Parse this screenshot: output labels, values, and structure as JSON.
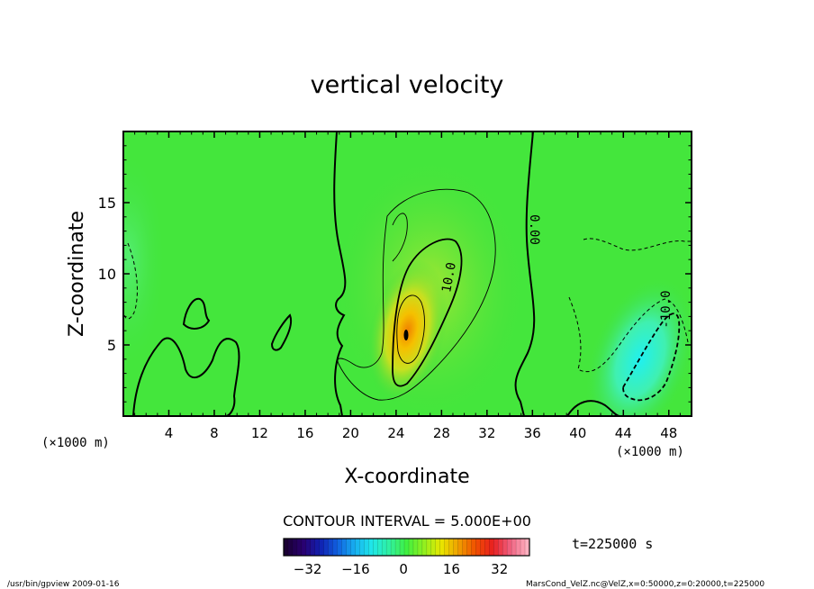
{
  "chart_data": {
    "type": "heatmap",
    "title": "vertical velocity",
    "xlabel": "X-coordinate",
    "ylabel": "Z-coordinate",
    "x_unit_left": "(×1000 m)",
    "x_unit_right": "(×1000 m)",
    "xlim": [
      0,
      50
    ],
    "ylim": [
      0,
      20
    ],
    "x_ticks": [
      4,
      8,
      12,
      16,
      20,
      24,
      28,
      32,
      36,
      40,
      44,
      48
    ],
    "x_tick_labels": [
      "4",
      "8",
      "12",
      "16",
      "20",
      "24",
      "28",
      "32",
      "36",
      "40",
      "44",
      "48"
    ],
    "y_ticks": [
      5,
      10,
      15
    ],
    "y_tick_labels": [
      "5",
      "10",
      "15"
    ],
    "contour_labels": [
      {
        "text": "0.00",
        "x": 35.8,
        "z": 13.1,
        "rotation": 90
      },
      {
        "text": "10.0",
        "x": 29.0,
        "z": 9.7,
        "rotation": -80
      },
      {
        "text": "-10.0",
        "x": 48.1,
        "z": 7.5,
        "rotation": -90
      }
    ],
    "contour_interval_text": "CONTOUR INTERVAL = 5.000E+00",
    "time_text": "t=225000 s",
    "colorbar": {
      "min": -40,
      "max": 42,
      "tick_values": [
        -32,
        -16,
        0,
        16,
        32
      ],
      "tick_labels": [
        "−32",
        "−16",
        "0",
        "16",
        "32"
      ],
      "colors": [
        "#1a0033",
        "#2a0070",
        "#1020b0",
        "#1060e0",
        "#18b0f0",
        "#20e8e8",
        "#30f0a0",
        "#40f040",
        "#90f020",
        "#e8e800",
        "#f0a000",
        "#f05000",
        "#e82020",
        "#f06080",
        "#ffb0c0"
      ]
    },
    "features": [
      {
        "name": "updraft",
        "x": 25.0,
        "z": 6.0,
        "peak": 15
      },
      {
        "name": "downdraft",
        "x": 45.5,
        "z": 4.0,
        "peak": -12
      }
    ]
  },
  "footer": {
    "left": "/usr/bin/gpview   2009-01-16",
    "right": "MarsCond_VelZ.nc@VelZ,x=0:50000,z=0:20000,t=225000"
  }
}
